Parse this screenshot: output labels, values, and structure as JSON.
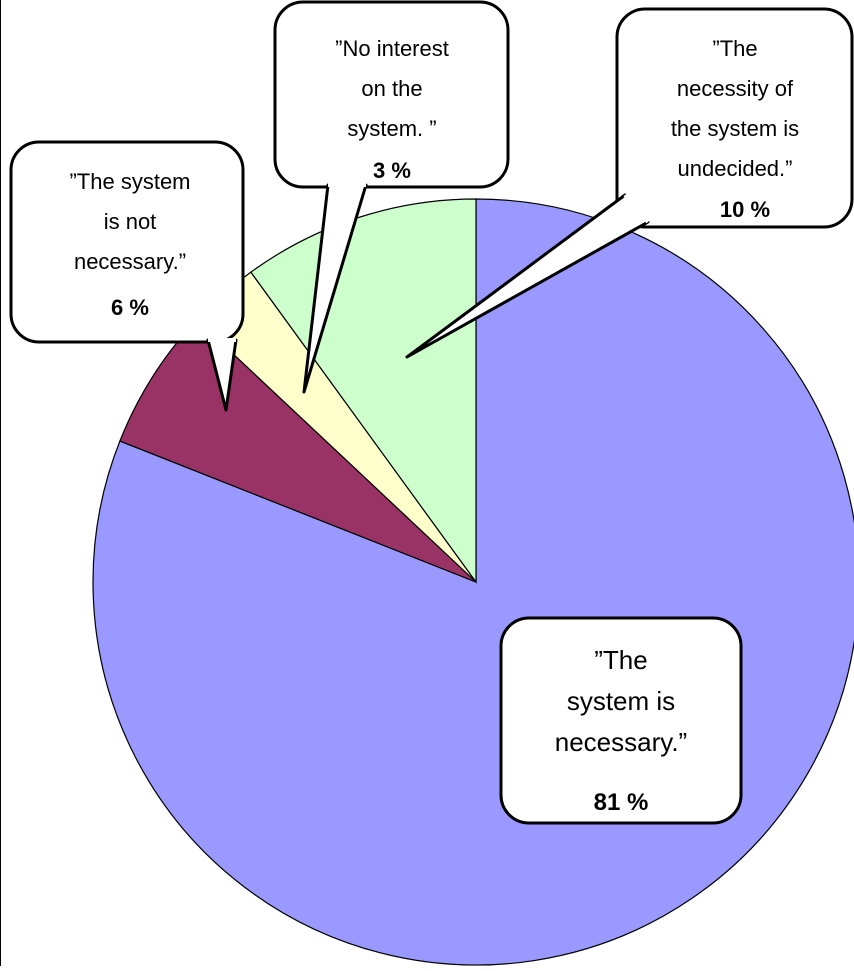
{
  "chart_data": {
    "type": "pie",
    "slices": [
      {
        "label_lines": [
          "”The",
          "system  is",
          "necessary.”"
        ],
        "value": 81,
        "value_label": "81 %",
        "color": "#9999ff"
      },
      {
        "label_lines": [
          "”The  system",
          "is  not",
          "necessary.”"
        ],
        "value": 6,
        "value_label": "6 %",
        "color": "#993366"
      },
      {
        "label_lines": [
          "”No  interest",
          "on  the",
          "system. ”"
        ],
        "value": 3,
        "value_label": "3 %",
        "color": "#ffffcc"
      },
      {
        "label_lines": [
          "”The",
          "necessity  of",
          "the system  is",
          "undecided.”"
        ],
        "value": 10,
        "value_label": "10 %",
        "color": "#ccffcc"
      }
    ],
    "start_angle": "12 o'clock",
    "direction": "clockwise",
    "title": "",
    "legend": "none"
  }
}
